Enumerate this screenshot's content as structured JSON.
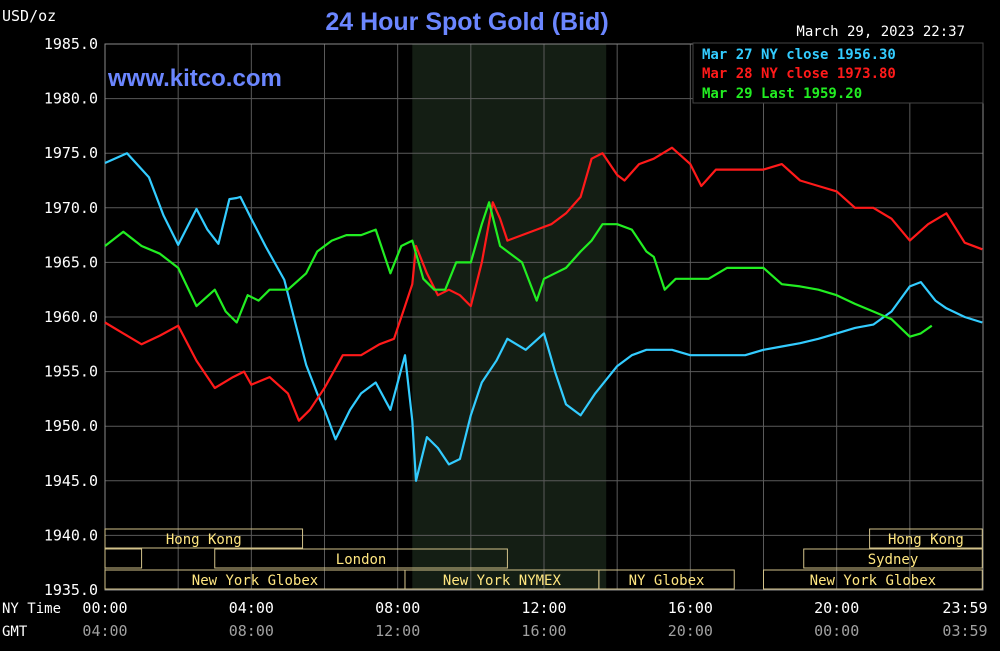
{
  "chart_data": {
    "type": "line",
    "title": "24 Hour Spot Gold (Bid)",
    "website": "www.kitco.com",
    "timestamp": "March 29, 2023 22:37",
    "unit_label": "USD/oz",
    "ylim": [
      1935.0,
      1985.0
    ],
    "y_ticks": [
      "1985.0",
      "1980.0",
      "1975.0",
      "1970.0",
      "1965.0",
      "1960.0",
      "1955.0",
      "1950.0",
      "1945.0",
      "1940.0",
      "1935.0"
    ],
    "x_axis_rows": [
      {
        "label": "NY Time",
        "ticks": [
          "00:00",
          "04:00",
          "08:00",
          "12:00",
          "16:00",
          "20:00",
          "23:59"
        ]
      },
      {
        "label": "GMT",
        "ticks": [
          "04:00",
          "08:00",
          "12:00",
          "16:00",
          "20:00",
          "00:00",
          "03:59"
        ]
      }
    ],
    "shaded_region_hours": [
      8.4,
      13.7
    ],
    "grid": true,
    "legend_placement": "top-right",
    "legend": [
      {
        "text": "Mar 27 NY close 1956.30",
        "color": "#33ccff"
      },
      {
        "text": "Mar 28 NY close 1973.80",
        "color": "#ff1a1a"
      },
      {
        "text": "Mar 29 Last 1959.20",
        "color": "#22ee22"
      }
    ],
    "series": [
      {
        "color": "#33ccff",
        "x": [
          0,
          0.6,
          1.2,
          1.6,
          2.0,
          2.5,
          2.8,
          3.1,
          3.4,
          3.6,
          3.7,
          4.0,
          4.4,
          4.9,
          5.2,
          5.5,
          5.8,
          6.0,
          6.3,
          6.7,
          7.0,
          7.4,
          7.8,
          8.2,
          8.4,
          8.5,
          8.8,
          9.1,
          9.4,
          9.7,
          10.0,
          10.3,
          10.7,
          11.0,
          11.5,
          12.0,
          12.3,
          12.6,
          13.0,
          13.4,
          14.0,
          14.4,
          14.8,
          15.0,
          15.5,
          16.0,
          16.5,
          17.0,
          17.5,
          18.0,
          18.5,
          19.0,
          19.5,
          20.0,
          20.5,
          21.0,
          21.5,
          22.0,
          22.3,
          22.7,
          23.0,
          23.5,
          23.98
        ],
        "y": [
          1974.1,
          1975.0,
          1972.8,
          1969.3,
          1966.6,
          1969.9,
          1968.0,
          1966.7,
          1970.8,
          1970.9,
          1971.0,
          1969.0,
          1966.4,
          1963.4,
          1959.5,
          1955.6,
          1953.0,
          1951.5,
          1948.8,
          1951.5,
          1953.0,
          1954.0,
          1951.5,
          1956.5,
          1950.5,
          1945.0,
          1949.0,
          1948.0,
          1946.5,
          1947.0,
          1951.0,
          1954.0,
          1956.0,
          1958.0,
          1957.0,
          1958.5,
          1955.0,
          1952.0,
          1951.0,
          1953.0,
          1955.5,
          1956.5,
          1957.0,
          1957.0,
          1957.0,
          1956.5,
          1956.5,
          1956.5,
          1956.5,
          1957.0,
          1957.3,
          1957.6,
          1958.0,
          1958.5,
          1959.0,
          1959.3,
          1960.5,
          1962.8,
          1963.2,
          1961.5,
          1960.8,
          1960.0,
          1959.5
        ]
      },
      {
        "color": "#ff1a1a",
        "x": [
          0,
          0.5,
          1.0,
          1.5,
          2.0,
          2.5,
          3.0,
          3.5,
          3.8,
          4.0,
          4.5,
          5.0,
          5.3,
          5.6,
          6.0,
          6.5,
          7.0,
          7.5,
          7.9,
          8.2,
          8.4,
          8.5,
          8.8,
          9.1,
          9.4,
          9.7,
          10.0,
          10.3,
          10.6,
          10.8,
          11.0,
          11.4,
          11.8,
          12.2,
          12.6,
          13.0,
          13.3,
          13.6,
          14.0,
          14.2,
          14.6,
          15.0,
          15.5,
          16.0,
          16.3,
          16.7,
          17.0,
          17.5,
          18.0,
          18.5,
          19.0,
          19.5,
          20.0,
          20.5,
          21.0,
          21.5,
          22.0,
          22.5,
          23.0,
          23.5,
          23.98
        ],
        "y": [
          1959.5,
          1958.5,
          1957.5,
          1958.3,
          1959.2,
          1956.0,
          1953.5,
          1954.5,
          1955.0,
          1953.8,
          1954.5,
          1953.0,
          1950.5,
          1951.5,
          1953.5,
          1956.5,
          1956.5,
          1957.5,
          1958.0,
          1961.0,
          1963.0,
          1966.5,
          1964.0,
          1962.0,
          1962.5,
          1962.0,
          1961.0,
          1965.0,
          1970.5,
          1969.0,
          1967.0,
          1967.5,
          1968.0,
          1968.5,
          1969.5,
          1971.0,
          1974.5,
          1975.0,
          1973.0,
          1972.5,
          1974.0,
          1974.5,
          1975.5,
          1974.0,
          1972.0,
          1973.5,
          1973.5,
          1973.5,
          1973.5,
          1974.0,
          1972.5,
          1972.0,
          1971.5,
          1970.0,
          1970.0,
          1969.0,
          1967.0,
          1968.5,
          1969.5,
          1966.8,
          1966.2
        ]
      },
      {
        "color": "#22ee22",
        "x": [
          0,
          0.5,
          1.0,
          1.5,
          2.0,
          2.5,
          3.0,
          3.3,
          3.6,
          3.9,
          4.2,
          4.5,
          5.0,
          5.5,
          5.8,
          6.2,
          6.6,
          7.0,
          7.4,
          7.8,
          8.1,
          8.4,
          8.7,
          9.0,
          9.3,
          9.6,
          10.0,
          10.3,
          10.5,
          10.8,
          11.0,
          11.4,
          11.8,
          12.0,
          12.3,
          12.6,
          13.0,
          13.3,
          13.6,
          14.0,
          14.4,
          14.8,
          15.0,
          15.3,
          15.6,
          16.0,
          16.5,
          17.0,
          17.5,
          18.0,
          18.5,
          19.0,
          19.5,
          20.0,
          20.5,
          21.0,
          21.5,
          22.0,
          22.3,
          22.6
        ],
        "y": [
          1966.5,
          1967.8,
          1966.5,
          1965.8,
          1964.5,
          1961.0,
          1962.5,
          1960.5,
          1959.5,
          1962.0,
          1961.5,
          1962.5,
          1962.5,
          1964.0,
          1966.0,
          1967.0,
          1967.5,
          1967.5,
          1968.0,
          1964.0,
          1966.5,
          1967.0,
          1963.5,
          1962.5,
          1962.5,
          1965.0,
          1965.0,
          1968.5,
          1970.5,
          1966.5,
          1966.0,
          1965.0,
          1961.5,
          1963.5,
          1964.0,
          1964.5,
          1966.0,
          1967.0,
          1968.5,
          1968.5,
          1968.0,
          1966.0,
          1965.5,
          1962.5,
          1963.5,
          1963.5,
          1963.5,
          1964.5,
          1964.5,
          1964.5,
          1963.0,
          1962.8,
          1962.5,
          1962.0,
          1961.2,
          1960.5,
          1959.8,
          1958.2,
          1958.5,
          1959.2
        ]
      }
    ],
    "sessions": [
      {
        "name": "Hong Kong",
        "row": 0,
        "start": 0.0,
        "end": 5.4
      },
      {
        "name": "",
        "row": 1,
        "start": 0.0,
        "end": 1.0
      },
      {
        "name": "London",
        "row": 1,
        "start": 3.0,
        "end": 11.0
      },
      {
        "name": "New York Globex",
        "row": 2,
        "start": 0.0,
        "end": 8.2
      },
      {
        "name": "New York NYMEX",
        "row": 2,
        "start": 8.2,
        "end": 13.5
      },
      {
        "name": "NY Globex",
        "row": 2,
        "start": 13.5,
        "end": 17.2
      },
      {
        "name": "Hong Kong",
        "row": 0,
        "start": 20.9,
        "end": 23.98
      },
      {
        "name": "Sydney",
        "row": 1,
        "start": 19.1,
        "end": 23.98
      },
      {
        "name": "New York Globex",
        "row": 2,
        "start": 18.0,
        "end": 23.98
      }
    ]
  }
}
